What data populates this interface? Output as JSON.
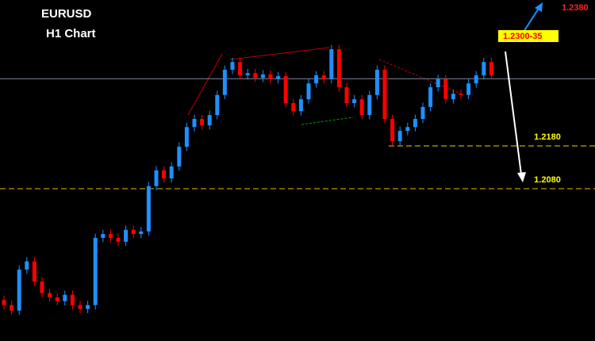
{
  "chart_data": {
    "type": "candlestick",
    "title": "EURUSD",
    "subtitle": "H1 Chart",
    "ylim": [
      1.1724,
      1.2521
    ],
    "up_color": "#1e90ff",
    "down_color": "#ff0000",
    "open": [
      1.182,
      1.1808,
      1.1795,
      1.1891,
      1.191,
      1.1863,
      1.1836,
      1.1826,
      1.1817,
      1.1832,
      1.1808,
      1.1799,
      1.1808,
      1.1965,
      1.1974,
      1.1965,
      1.1956,
      1.1984,
      1.1974,
      1.198,
      1.2086,
      1.2123,
      1.2104,
      1.2132,
      1.2178,
      1.2224,
      1.2243,
      1.2228,
      1.2252,
      1.2299,
      1.2358,
      1.2376,
      1.2345,
      1.235,
      1.2339,
      1.2347,
      1.2336,
      1.2343,
      1.228,
      1.2261,
      1.2289,
      1.2326,
      1.2345,
      1.2336,
      1.2406,
      1.2317,
      1.228,
      1.2289,
      1.2252,
      1.2299,
      1.2358,
      1.2243,
      1.2191,
      1.2215,
      1.2224,
      1.2243,
      1.2271,
      1.2317,
      1.2336,
      1.2289,
      1.2302,
      1.2299,
      1.2326,
      1.2345,
      1.2376
    ],
    "high": [
      1.183,
      1.1818,
      1.1901,
      1.192,
      1.192,
      1.1873,
      1.1846,
      1.1836,
      1.1842,
      1.1842,
      1.1818,
      1.1818,
      1.1975,
      1.1984,
      1.1984,
      1.1975,
      1.1994,
      1.1994,
      1.199,
      1.2096,
      1.2133,
      1.2133,
      1.2142,
      1.2188,
      1.2234,
      1.2253,
      1.2253,
      1.2262,
      1.2309,
      1.2368,
      1.2386,
      1.2386,
      1.236,
      1.236,
      1.2357,
      1.2357,
      1.2353,
      1.2353,
      1.229,
      1.2299,
      1.2336,
      1.2355,
      1.2355,
      1.2416,
      1.2416,
      1.2327,
      1.2299,
      1.2299,
      1.2309,
      1.2368,
      1.2368,
      1.2253,
      1.2225,
      1.2234,
      1.2253,
      1.2281,
      1.2327,
      1.2346,
      1.2346,
      1.2312,
      1.2312,
      1.2336,
      1.2355,
      1.2386,
      1.2386
    ],
    "low": [
      1.1798,
      1.1785,
      1.1785,
      1.1881,
      1.1853,
      1.1826,
      1.1816,
      1.1807,
      1.1807,
      1.1798,
      1.1789,
      1.1789,
      1.1798,
      1.1955,
      1.1955,
      1.1946,
      1.1946,
      1.1964,
      1.1964,
      1.197,
      1.2076,
      1.2094,
      1.2094,
      1.2122,
      1.2168,
      1.2214,
      1.2218,
      1.2218,
      1.2242,
      1.2289,
      1.2348,
      1.2335,
      1.2335,
      1.2329,
      1.2329,
      1.2326,
      1.2326,
      1.227,
      1.2251,
      1.2251,
      1.2279,
      1.2316,
      1.2326,
      1.2326,
      1.2307,
      1.227,
      1.227,
      1.2242,
      1.2242,
      1.2289,
      1.2233,
      1.218,
      1.2181,
      1.2205,
      1.2214,
      1.2233,
      1.2261,
      1.2307,
      1.2279,
      1.2279,
      1.2289,
      1.2289,
      1.2316,
      1.2335,
      1.2335
    ],
    "close": [
      1.1808,
      1.1795,
      1.1891,
      1.191,
      1.1863,
      1.1836,
      1.1826,
      1.1817,
      1.1832,
      1.1808,
      1.1799,
      1.1808,
      1.1965,
      1.1974,
      1.1965,
      1.1956,
      1.1984,
      1.1974,
      1.198,
      1.2086,
      1.2123,
      1.2104,
      1.2132,
      1.2178,
      1.2224,
      1.2243,
      1.2228,
      1.2252,
      1.2299,
      1.2358,
      1.2376,
      1.2345,
      1.235,
      1.2339,
      1.2347,
      1.2336,
      1.2343,
      1.228,
      1.2261,
      1.2289,
      1.2326,
      1.2345,
      1.2336,
      1.2406,
      1.2317,
      1.228,
      1.2289,
      1.2252,
      1.2299,
      1.2358,
      1.2243,
      1.2191,
      1.2215,
      1.2224,
      1.2243,
      1.2271,
      1.2317,
      1.2336,
      1.2289,
      1.2302,
      1.2299,
      1.2326,
      1.2345,
      1.2376,
      1.2345
    ],
    "reference_line": 1.2337,
    "levels": [
      {
        "value": 1.218,
        "label": "1.2180"
      },
      {
        "value": 1.208,
        "label": "1.2080"
      }
    ],
    "annotations": [
      "1.2380",
      "1.2300-35"
    ]
  }
}
